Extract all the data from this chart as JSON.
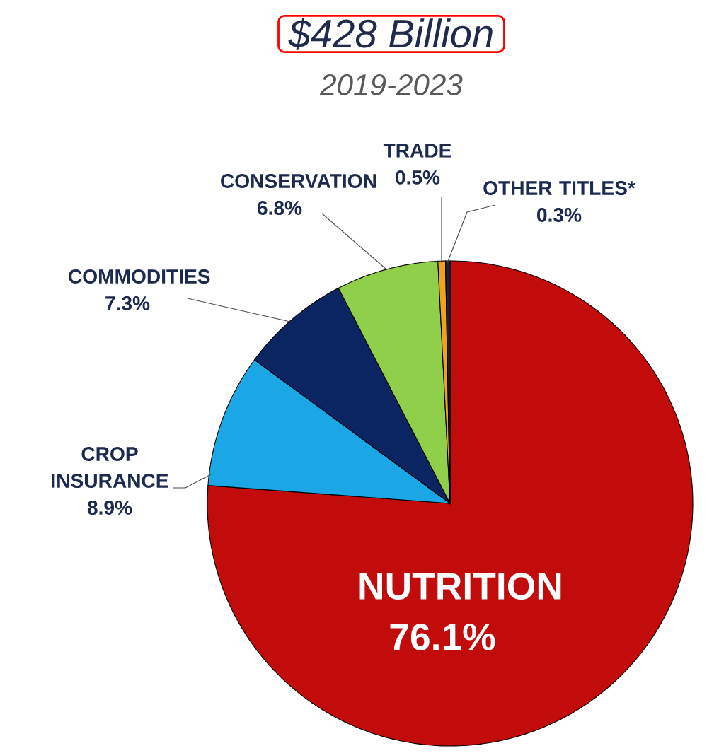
{
  "chart_data": {
    "type": "pie",
    "title": "$428 Billion",
    "subtitle": "2019-2023",
    "categories": [
      "NUTRITION",
      "CROP INSURANCE",
      "COMMODITIES",
      "CONSERVATION",
      "TRADE",
      "OTHER TITLES*"
    ],
    "values": [
      76.1,
      8.9,
      7.3,
      6.8,
      0.5,
      0.3
    ],
    "value_labels": [
      "76.1%",
      "8.9%",
      "7.3%",
      "6.8%",
      "0.5%",
      "0.3%"
    ],
    "colors": [
      "#c20b0b",
      "#1ba6e6",
      "#0b2563",
      "#8fcf4a",
      "#f0a21e",
      "#1c2340"
    ]
  }
}
